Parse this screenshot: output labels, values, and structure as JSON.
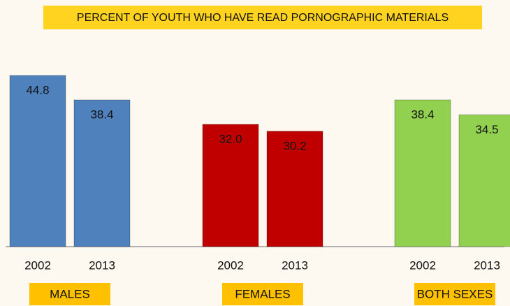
{
  "chart_data": {
    "type": "bar",
    "title": "PERCENT OF YOUTH WHO HAVE READ PORNOGRAPHIC MATERIALS",
    "categories": [
      "2002",
      "2013"
    ],
    "series": [
      {
        "name": "MALES",
        "color": "#4f81bd",
        "label_color": "#111111",
        "values": [
          44.8,
          38.4
        ],
        "value_labels": [
          "44.8",
          "38.4"
        ]
      },
      {
        "name": "FEMALES",
        "color": "#c00000",
        "label_color": "#ffffff",
        "values": [
          32.0,
          30.2
        ],
        "value_labels": [
          "32.0",
          "30.2"
        ]
      },
      {
        "name": "BOTH SEXES",
        "color": "#92d050",
        "label_color": "#111111",
        "values": [
          38.4,
          34.5
        ],
        "value_labels": [
          "38.4",
          "34.5"
        ]
      }
    ]
  }
}
